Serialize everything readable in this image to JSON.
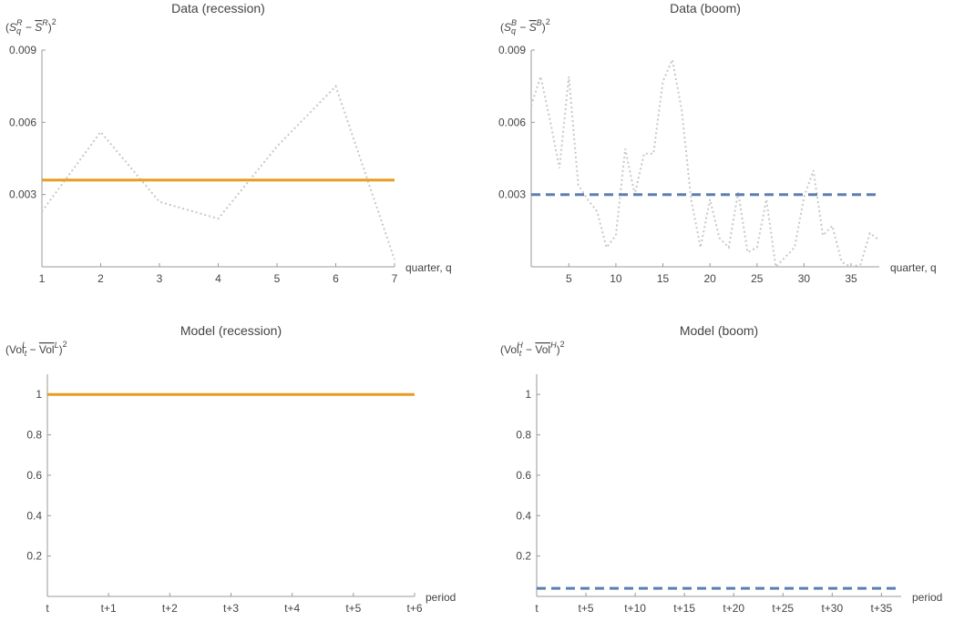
{
  "chart_data": [
    {
      "type": "line",
      "title": "Data (recession)",
      "ylabel": {
        "base": "S",
        "sub": "q",
        "sup": "R",
        "bar_base": "S",
        "bar_sup": "R",
        "power": "2"
      },
      "xlabel": "quarter, q",
      "xlim": [
        1,
        7
      ],
      "ylim": [
        0.0,
        0.009
      ],
      "xticks": [
        1,
        2,
        3,
        4,
        5,
        6,
        7
      ],
      "yticks": [
        0.003,
        0.006,
        0.009
      ],
      "ytick_labels": [
        "0.003",
        "0.006",
        "0.009"
      ],
      "series": [
        {
          "style": "dotted",
          "color": "#c8c8c8",
          "x": [
            1,
            2,
            3,
            4,
            5,
            6,
            7
          ],
          "y": [
            0.0023,
            0.0056,
            0.0027,
            0.002,
            0.005,
            0.0075,
            0.0003
          ]
        },
        {
          "style": "solid",
          "color": "#e69e22",
          "x": [
            1,
            7
          ],
          "y": [
            0.0036,
            0.0036
          ]
        }
      ]
    },
    {
      "type": "line",
      "title": "Data (boom)",
      "ylabel": {
        "base": "S",
        "sub": "q",
        "sup": "B",
        "bar_base": "S",
        "bar_sup": "B",
        "power": "2"
      },
      "xlabel": "quarter, q",
      "xlim": [
        1,
        38
      ],
      "ylim": [
        0.0,
        0.009
      ],
      "xticks": [
        5,
        10,
        15,
        20,
        25,
        30,
        35
      ],
      "yticks": [
        0.003,
        0.006,
        0.009
      ],
      "ytick_labels": [
        "0.003",
        "0.006",
        "0.009"
      ],
      "series": [
        {
          "style": "dotted",
          "color": "#c8c8c8",
          "x": [
            1,
            2,
            3,
            4,
            5,
            6,
            7,
            8,
            9,
            10,
            11,
            12,
            13,
            14,
            15,
            16,
            17,
            18,
            19,
            20,
            21,
            22,
            23,
            24,
            25,
            26,
            27,
            28,
            29,
            30,
            31,
            32,
            33,
            34,
            35,
            36,
            37,
            38
          ],
          "y": [
            0.0067,
            0.0079,
            0.0061,
            0.0041,
            0.0079,
            0.0034,
            0.0028,
            0.0023,
            0.0008,
            0.0013,
            0.0049,
            0.003,
            0.0047,
            0.0047,
            0.0077,
            0.0086,
            0.0065,
            0.0028,
            0.0008,
            0.0028,
            0.0012,
            0.0008,
            0.0031,
            0.0006,
            0.0008,
            0.0028,
            0.0,
            0.0004,
            0.0008,
            0.0029,
            0.004,
            0.0013,
            0.0017,
            0.0002,
            0.0,
            0.0001,
            0.0014,
            0.0011
          ]
        },
        {
          "style": "dashed",
          "color": "#5b7fb0",
          "x": [
            1,
            38
          ],
          "y": [
            0.003,
            0.003
          ]
        }
      ]
    },
    {
      "type": "line",
      "title": "Model (recession)",
      "ylabel": {
        "base": "Vol",
        "sub": "t",
        "sup": "L",
        "bar_base": "Vol",
        "bar_sup": "L",
        "power": "2"
      },
      "xlabel": "period",
      "xlim": [
        0,
        6
      ],
      "ylim": [
        0,
        1.1
      ],
      "xticks": [
        0,
        1,
        2,
        3,
        4,
        5,
        6
      ],
      "xtick_labels": [
        "t",
        "t+1",
        "t+2",
        "t+3",
        "t+4",
        "t+5",
        "t+6"
      ],
      "yticks": [
        0.2,
        0.4,
        0.6,
        0.8,
        1.0
      ],
      "ytick_labels": [
        "0.2",
        "0.4",
        "0.6",
        "0.8",
        "1"
      ],
      "series": [
        {
          "style": "solid",
          "color": "#e69e22",
          "x": [
            0,
            6
          ],
          "y": [
            1.0,
            1.0
          ]
        }
      ]
    },
    {
      "type": "line",
      "title": "Model (boom)",
      "ylabel": {
        "base": "Vol",
        "sub": "t",
        "sup": "H",
        "bar_base": "Vol",
        "bar_sup": "H",
        "power": "2"
      },
      "xlabel": "period",
      "xlim": [
        0,
        37
      ],
      "ylim": [
        0,
        1.1
      ],
      "xticks": [
        0,
        5,
        10,
        15,
        20,
        25,
        30,
        35
      ],
      "xtick_labels": [
        "t",
        "t+5",
        "t+10",
        "t+15",
        "t+20",
        "t+25",
        "t+30",
        "t+35"
      ],
      "yticks": [
        0.2,
        0.4,
        0.6,
        0.8,
        1.0
      ],
      "ytick_labels": [
        "0.2",
        "0.4",
        "0.6",
        "0.8",
        "1"
      ],
      "series": [
        {
          "style": "dashed",
          "color": "#5b7fb0",
          "x": [
            0,
            37
          ],
          "y": [
            0.04,
            0.04
          ]
        }
      ]
    }
  ]
}
